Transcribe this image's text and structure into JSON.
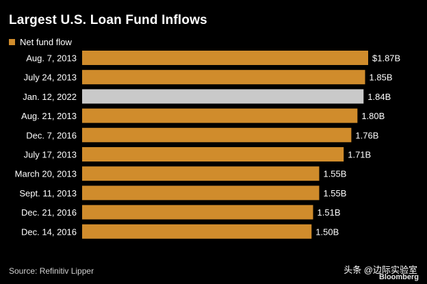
{
  "title": "Largest U.S. Loan Fund Inflows",
  "source": "Source: Refinitiv Lipper",
  "watermark": "头条 @边际实验室",
  "brand": "Bloomberg",
  "colors": {
    "background": "#000000",
    "bar": "#d08c2c",
    "highlight": "#c9c9c9",
    "text": "#ffffff"
  },
  "chart_data": {
    "type": "bar",
    "orientation": "horizontal",
    "title": "Largest U.S. Loan Fund Inflows",
    "legend": {
      "placement": "top-left",
      "entries": [
        "Net fund flow"
      ]
    },
    "categories": [
      "Aug. 7, 2013",
      "July 24, 2013",
      "Jan. 12, 2022",
      "Aug. 21, 2013",
      "Dec. 7, 2016",
      "July 17, 2013",
      "March 20, 2013",
      "Sept. 11, 2013",
      "Dec. 21, 2016",
      "Dec. 14, 2016"
    ],
    "series": [
      {
        "name": "Net fund flow",
        "values": [
          1.87,
          1.85,
          1.84,
          1.8,
          1.76,
          1.71,
          1.55,
          1.55,
          1.51,
          1.5
        ]
      }
    ],
    "data_labels": [
      "$1.87B",
      "1.85B",
      "1.84B",
      "1.80B",
      "1.76B",
      "1.71B",
      "1.55B",
      "1.55B",
      "1.51B",
      "1.50B"
    ],
    "highlight_category": "Jan. 12, 2022",
    "xlim": [
      0,
      1.87
    ],
    "grid": false
  }
}
